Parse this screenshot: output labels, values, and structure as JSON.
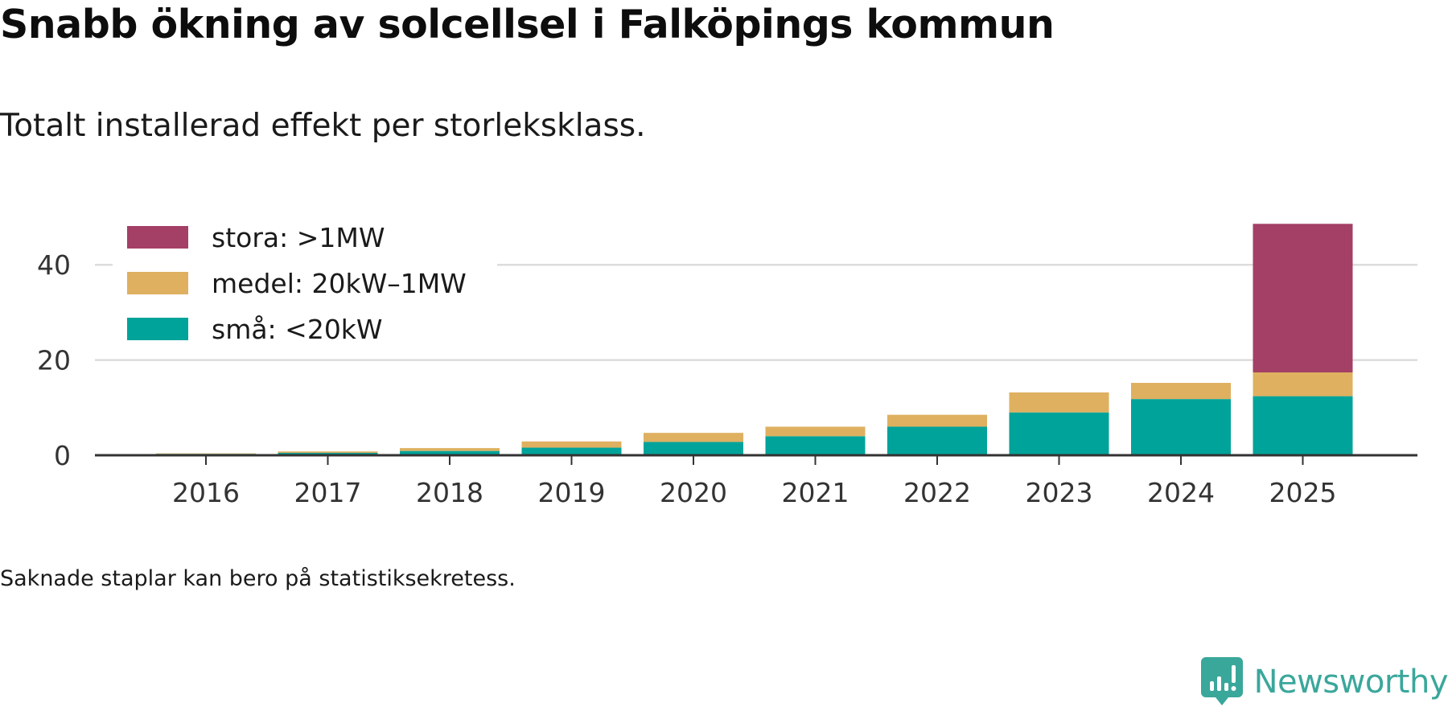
{
  "header": {
    "title": "Snabb ökning av solcellsel i Falköpings kommun",
    "subtitle": "Totalt installerad effekt per storleksklass."
  },
  "footer": {
    "note": "Saknade staplar kan bero på statistiksekretess.",
    "brand": "Newsworthy",
    "brand_color": "#3aa79b"
  },
  "chart_data": {
    "type": "bar",
    "stacked": true,
    "title": "Snabb ökning av solcellsel i Falköpings kommun",
    "subtitle": "Totalt installerad effekt per storleksklass.",
    "xlabel": "",
    "ylabel": "",
    "ylim": [
      0,
      50
    ],
    "yticks": [
      0,
      20,
      40
    ],
    "grid": true,
    "legend_position": "top-left",
    "categories": [
      "2016",
      "2017",
      "2018",
      "2019",
      "2020",
      "2021",
      "2022",
      "2023",
      "2024",
      "2025"
    ],
    "series": [
      {
        "name": "små: <20kW",
        "color": "#00a39a",
        "values": [
          0.3,
          0.5,
          0.9,
          1.6,
          2.8,
          4.0,
          6.0,
          9.0,
          11.8,
          12.4
        ]
      },
      {
        "name": "medel: 20kW–1MW",
        "color": "#deb060",
        "values": [
          0.1,
          0.3,
          0.6,
          1.3,
          1.9,
          2.0,
          2.5,
          4.2,
          3.4,
          5.0
        ]
      },
      {
        "name": "stora: >1MW",
        "color": "#a43f66",
        "values": [
          0,
          0,
          0,
          0,
          0,
          0,
          0,
          0,
          0,
          31.2
        ]
      }
    ],
    "legend_order": [
      "stora: >1MW",
      "medel: 20kW–1MW",
      "små: <20kW"
    ]
  }
}
